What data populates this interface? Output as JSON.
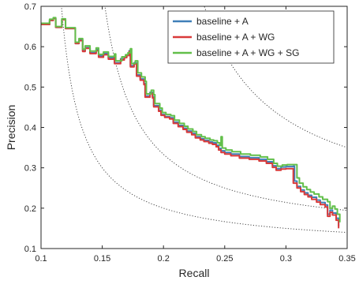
{
  "chart_data": {
    "type": "line",
    "title": "",
    "xlabel": "Recall",
    "ylabel": "Precision",
    "xlim": [
      0.1,
      0.35
    ],
    "ylim": [
      0.1,
      0.7
    ],
    "x_ticks": [
      0.1,
      0.15,
      0.2,
      0.25,
      0.3,
      0.35
    ],
    "x_tick_labels": [
      "0.1",
      "0.15",
      "0.2",
      "0.25",
      "0.3",
      "0.35"
    ],
    "y_ticks": [
      0.1,
      0.2,
      0.3,
      0.4,
      0.5,
      0.6,
      0.7
    ],
    "y_tick_labels": [
      "0.1",
      "0.2",
      "0.3",
      "0.4",
      "0.5",
      "0.6",
      "0.7"
    ],
    "grid": false,
    "legend_position": "top-right",
    "series": [
      {
        "name": "baseline + A",
        "color": "#3f7fb8",
        "points": [
          [
            0.1,
            0.655
          ],
          [
            0.107,
            0.665
          ],
          [
            0.11,
            0.67
          ],
          [
            0.112,
            0.648
          ],
          [
            0.117,
            0.667
          ],
          [
            0.12,
            0.645
          ],
          [
            0.126,
            0.645
          ],
          [
            0.128,
            0.608
          ],
          [
            0.131,
            0.617
          ],
          [
            0.134,
            0.59
          ],
          [
            0.136,
            0.598
          ],
          [
            0.14,
            0.585
          ],
          [
            0.145,
            0.593
          ],
          [
            0.147,
            0.577
          ],
          [
            0.151,
            0.583
          ],
          [
            0.155,
            0.572
          ],
          [
            0.16,
            0.578
          ],
          [
            0.16,
            0.56
          ],
          [
            0.165,
            0.57
          ],
          [
            0.168,
            0.575
          ],
          [
            0.17,
            0.58
          ],
          [
            0.172,
            0.59
          ],
          [
            0.173,
            0.553
          ],
          [
            0.176,
            0.56
          ],
          [
            0.178,
            0.53
          ],
          [
            0.181,
            0.52
          ],
          [
            0.184,
            0.509
          ],
          [
            0.185,
            0.478
          ],
          [
            0.189,
            0.487
          ],
          [
            0.191,
            0.476
          ],
          [
            0.192,
            0.454
          ],
          [
            0.196,
            0.443
          ],
          [
            0.198,
            0.432
          ],
          [
            0.201,
            0.427
          ],
          [
            0.205,
            0.424
          ],
          [
            0.208,
            0.413
          ],
          [
            0.212,
            0.405
          ],
          [
            0.216,
            0.398
          ],
          [
            0.219,
            0.391
          ],
          [
            0.223,
            0.385
          ],
          [
            0.226,
            0.377
          ],
          [
            0.23,
            0.372
          ],
          [
            0.233,
            0.368
          ],
          [
            0.237,
            0.364
          ],
          [
            0.24,
            0.362
          ],
          [
            0.243,
            0.356
          ],
          [
            0.245,
            0.348
          ],
          [
            0.247,
            0.342
          ],
          [
            0.25,
            0.338
          ],
          [
            0.255,
            0.334
          ],
          [
            0.262,
            0.328
          ],
          [
            0.27,
            0.325
          ],
          [
            0.278,
            0.321
          ],
          [
            0.284,
            0.315
          ],
          [
            0.289,
            0.305
          ],
          [
            0.292,
            0.298
          ],
          [
            0.296,
            0.302
          ],
          [
            0.3,
            0.303
          ],
          [
            0.306,
            0.304
          ],
          [
            0.307,
            0.267
          ],
          [
            0.309,
            0.254
          ],
          [
            0.312,
            0.245
          ],
          [
            0.315,
            0.238
          ],
          [
            0.318,
            0.232
          ],
          [
            0.321,
            0.227
          ],
          [
            0.325,
            0.22
          ],
          [
            0.328,
            0.214
          ],
          [
            0.332,
            0.208
          ],
          [
            0.334,
            0.185
          ],
          [
            0.336,
            0.195
          ],
          [
            0.338,
            0.188
          ],
          [
            0.341,
            0.175
          ],
          [
            0.343,
            0.155
          ]
        ]
      },
      {
        "name": "baseline + A + WG",
        "color": "#d93a3a",
        "points": [
          [
            0.1,
            0.655
          ],
          [
            0.107,
            0.665
          ],
          [
            0.11,
            0.67
          ],
          [
            0.112,
            0.648
          ],
          [
            0.117,
            0.667
          ],
          [
            0.12,
            0.645
          ],
          [
            0.126,
            0.645
          ],
          [
            0.128,
            0.608
          ],
          [
            0.131,
            0.615
          ],
          [
            0.134,
            0.588
          ],
          [
            0.136,
            0.596
          ],
          [
            0.14,
            0.583
          ],
          [
            0.145,
            0.59
          ],
          [
            0.147,
            0.574
          ],
          [
            0.151,
            0.58
          ],
          [
            0.155,
            0.569
          ],
          [
            0.16,
            0.575
          ],
          [
            0.16,
            0.558
          ],
          [
            0.165,
            0.567
          ],
          [
            0.168,
            0.573
          ],
          [
            0.17,
            0.578
          ],
          [
            0.172,
            0.588
          ],
          [
            0.173,
            0.55
          ],
          [
            0.176,
            0.557
          ],
          [
            0.178,
            0.527
          ],
          [
            0.181,
            0.517
          ],
          [
            0.184,
            0.506
          ],
          [
            0.185,
            0.475
          ],
          [
            0.189,
            0.484
          ],
          [
            0.191,
            0.473
          ],
          [
            0.192,
            0.451
          ],
          [
            0.196,
            0.44
          ],
          [
            0.198,
            0.43
          ],
          [
            0.201,
            0.425
          ],
          [
            0.205,
            0.421
          ],
          [
            0.208,
            0.41
          ],
          [
            0.212,
            0.402
          ],
          [
            0.216,
            0.395
          ],
          [
            0.219,
            0.388
          ],
          [
            0.223,
            0.382
          ],
          [
            0.226,
            0.374
          ],
          [
            0.23,
            0.369
          ],
          [
            0.233,
            0.365
          ],
          [
            0.237,
            0.361
          ],
          [
            0.24,
            0.358
          ],
          [
            0.243,
            0.352
          ],
          [
            0.245,
            0.344
          ],
          [
            0.247,
            0.338
          ],
          [
            0.25,
            0.334
          ],
          [
            0.255,
            0.33
          ],
          [
            0.262,
            0.324
          ],
          [
            0.27,
            0.321
          ],
          [
            0.278,
            0.317
          ],
          [
            0.284,
            0.311
          ],
          [
            0.289,
            0.301
          ],
          [
            0.292,
            0.294
          ],
          [
            0.296,
            0.297
          ],
          [
            0.3,
            0.298
          ],
          [
            0.305,
            0.298
          ],
          [
            0.306,
            0.262
          ],
          [
            0.309,
            0.25
          ],
          [
            0.312,
            0.241
          ],
          [
            0.315,
            0.234
          ],
          [
            0.318,
            0.228
          ],
          [
            0.321,
            0.222
          ],
          [
            0.325,
            0.215
          ],
          [
            0.328,
            0.209
          ],
          [
            0.332,
            0.203
          ],
          [
            0.334,
            0.18
          ],
          [
            0.336,
            0.19
          ],
          [
            0.338,
            0.183
          ],
          [
            0.341,
            0.17
          ],
          [
            0.343,
            0.15
          ]
        ]
      },
      {
        "name": "baseline + A + WG + SG",
        "color": "#62bf4a",
        "points": [
          [
            0.1,
            0.658
          ],
          [
            0.107,
            0.668
          ],
          [
            0.11,
            0.672
          ],
          [
            0.112,
            0.65
          ],
          [
            0.117,
            0.669
          ],
          [
            0.12,
            0.647
          ],
          [
            0.126,
            0.647
          ],
          [
            0.128,
            0.611
          ],
          [
            0.131,
            0.62
          ],
          [
            0.134,
            0.594
          ],
          [
            0.136,
            0.602
          ],
          [
            0.14,
            0.589
          ],
          [
            0.145,
            0.597
          ],
          [
            0.147,
            0.581
          ],
          [
            0.151,
            0.587
          ],
          [
            0.155,
            0.576
          ],
          [
            0.16,
            0.582
          ],
          [
            0.161,
            0.565
          ],
          [
            0.166,
            0.575
          ],
          [
            0.169,
            0.58
          ],
          [
            0.171,
            0.585
          ],
          [
            0.173,
            0.595
          ],
          [
            0.174,
            0.558
          ],
          [
            0.177,
            0.565
          ],
          [
            0.179,
            0.535
          ],
          [
            0.182,
            0.525
          ],
          [
            0.185,
            0.514
          ],
          [
            0.186,
            0.483
          ],
          [
            0.19,
            0.492
          ],
          [
            0.192,
            0.481
          ],
          [
            0.193,
            0.459
          ],
          [
            0.197,
            0.448
          ],
          [
            0.199,
            0.437
          ],
          [
            0.202,
            0.432
          ],
          [
            0.206,
            0.429
          ],
          [
            0.209,
            0.418
          ],
          [
            0.213,
            0.41
          ],
          [
            0.217,
            0.403
          ],
          [
            0.22,
            0.396
          ],
          [
            0.224,
            0.39
          ],
          [
            0.227,
            0.382
          ],
          [
            0.231,
            0.377
          ],
          [
            0.234,
            0.373
          ],
          [
            0.238,
            0.369
          ],
          [
            0.241,
            0.367
          ],
          [
            0.244,
            0.362
          ],
          [
            0.246,
            0.355
          ],
          [
            0.247,
            0.377
          ],
          [
            0.248,
            0.349
          ],
          [
            0.251,
            0.344
          ],
          [
            0.256,
            0.34
          ],
          [
            0.263,
            0.334
          ],
          [
            0.271,
            0.331
          ],
          [
            0.279,
            0.327
          ],
          [
            0.285,
            0.321
          ],
          [
            0.29,
            0.311
          ],
          [
            0.293,
            0.304
          ],
          [
            0.297,
            0.307
          ],
          [
            0.301,
            0.308
          ],
          [
            0.308,
            0.308
          ],
          [
            0.309,
            0.275
          ],
          [
            0.311,
            0.262
          ],
          [
            0.314,
            0.253
          ],
          [
            0.317,
            0.246
          ],
          [
            0.32,
            0.24
          ],
          [
            0.323,
            0.235
          ],
          [
            0.327,
            0.228
          ],
          [
            0.33,
            0.222
          ],
          [
            0.334,
            0.216
          ],
          [
            0.336,
            0.2
          ],
          [
            0.338,
            0.205
          ],
          [
            0.34,
            0.198
          ],
          [
            0.342,
            0.185
          ],
          [
            0.344,
            0.165
          ]
        ]
      }
    ],
    "iso_f_curves": {
      "style": "dotted",
      "color": "#333333",
      "f_values": [
        0.2,
        0.25,
        0.35
      ]
    }
  }
}
